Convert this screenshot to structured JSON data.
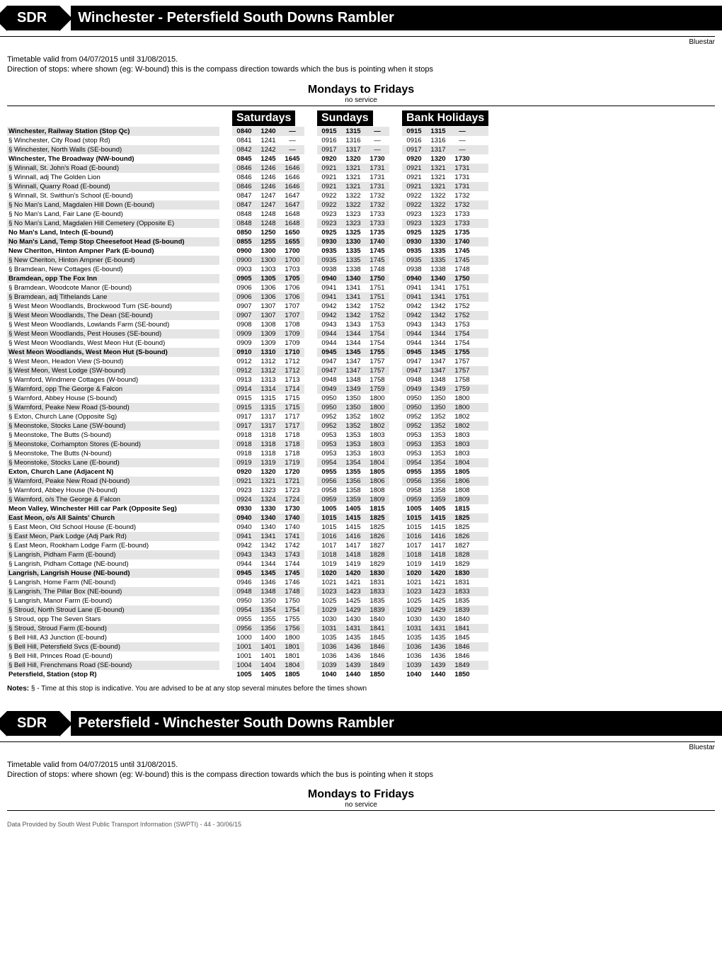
{
  "route_code": "SDR",
  "route_title": "Winchester - Petersfield South Downs Rambler",
  "route_title_reverse": "Petersfield - Winchester South Downs Rambler",
  "brand": "Bluestar",
  "validity": "Timetable valid from 04/07/2015 until 31/08/2015.",
  "direction_note": "Direction of stops: where shown (eg: W-bound) this is the compass direction towards which the bus is pointing when it stops",
  "section_title": "Mondays to Fridays",
  "no_service": "no service",
  "col_heads": [
    "Saturdays",
    "Sundays",
    "Bank Holidays"
  ],
  "notes_label": "Notes:",
  "notes_text": "§ - Time at this stop is indicative. You are advised to be at any stop several minutes before the times shown",
  "footer": "Data Provided by South West Public Transport Information (SWPTI)  -  44  -  30/06/15",
  "stops": [
    {
      "n": "Winchester, Railway Station (Stop Qc)",
      "b": true,
      "sat": [
        "0840",
        "1240",
        "—"
      ],
      "sun": [
        "0915",
        "1315",
        "—"
      ],
      "bh": [
        "0915",
        "1315",
        "—"
      ]
    },
    {
      "n": "§ Winchester, City Road (stop Rd)",
      "b": false,
      "sat": [
        "0841",
        "1241",
        "—"
      ],
      "sun": [
        "0916",
        "1316",
        "—"
      ],
      "bh": [
        "0916",
        "1316",
        "—"
      ]
    },
    {
      "n": "§ Winchester, North Walls (SE-bound)",
      "b": false,
      "sat": [
        "0842",
        "1242",
        "—"
      ],
      "sun": [
        "0917",
        "1317",
        "—"
      ],
      "bh": [
        "0917",
        "1317",
        "—"
      ]
    },
    {
      "n": "Winchester, The Broadway (NW-bound)",
      "b": true,
      "sat": [
        "0845",
        "1245",
        "1645"
      ],
      "sun": [
        "0920",
        "1320",
        "1730"
      ],
      "bh": [
        "0920",
        "1320",
        "1730"
      ]
    },
    {
      "n": "§ Winnall, St. John's Road (E-bound)",
      "b": false,
      "sat": [
        "0846",
        "1246",
        "1646"
      ],
      "sun": [
        "0921",
        "1321",
        "1731"
      ],
      "bh": [
        "0921",
        "1321",
        "1731"
      ]
    },
    {
      "n": "§ Winnall, adj The Golden Lion",
      "b": false,
      "sat": [
        "0846",
        "1246",
        "1646"
      ],
      "sun": [
        "0921",
        "1321",
        "1731"
      ],
      "bh": [
        "0921",
        "1321",
        "1731"
      ]
    },
    {
      "n": "§ Winnall, Quarry Road (E-bound)",
      "b": false,
      "sat": [
        "0846",
        "1246",
        "1646"
      ],
      "sun": [
        "0921",
        "1321",
        "1731"
      ],
      "bh": [
        "0921",
        "1321",
        "1731"
      ]
    },
    {
      "n": "§ Winnall, St. Swithun's School (E-bound)",
      "b": false,
      "sat": [
        "0847",
        "1247",
        "1647"
      ],
      "sun": [
        "0922",
        "1322",
        "1732"
      ],
      "bh": [
        "0922",
        "1322",
        "1732"
      ]
    },
    {
      "n": "§ No Man's Land, Magdalen Hill Down (E-bound)",
      "b": false,
      "sat": [
        "0847",
        "1247",
        "1647"
      ],
      "sun": [
        "0922",
        "1322",
        "1732"
      ],
      "bh": [
        "0922",
        "1322",
        "1732"
      ]
    },
    {
      "n": "§ No Man's Land, Fair Lane (E-bound)",
      "b": false,
      "sat": [
        "0848",
        "1248",
        "1648"
      ],
      "sun": [
        "0923",
        "1323",
        "1733"
      ],
      "bh": [
        "0923",
        "1323",
        "1733"
      ]
    },
    {
      "n": "§ No Man's Land, Magdalen Hill Cemetery (Opposite E)",
      "b": false,
      "sat": [
        "0848",
        "1248",
        "1648"
      ],
      "sun": [
        "0923",
        "1323",
        "1733"
      ],
      "bh": [
        "0923",
        "1323",
        "1733"
      ]
    },
    {
      "n": "No Man's Land, Intech (E-bound)",
      "b": true,
      "sat": [
        "0850",
        "1250",
        "1650"
      ],
      "sun": [
        "0925",
        "1325",
        "1735"
      ],
      "bh": [
        "0925",
        "1325",
        "1735"
      ]
    },
    {
      "n": "No Man's Land, Temp Stop Cheesefoot Head (S-bound)",
      "b": true,
      "sat": [
        "0855",
        "1255",
        "1655"
      ],
      "sun": [
        "0930",
        "1330",
        "1740"
      ],
      "bh": [
        "0930",
        "1330",
        "1740"
      ]
    },
    {
      "n": "New Cheriton, Hinton Ampner Park (E-bound)",
      "b": true,
      "sat": [
        "0900",
        "1300",
        "1700"
      ],
      "sun": [
        "0935",
        "1335",
        "1745"
      ],
      "bh": [
        "0935",
        "1335",
        "1745"
      ]
    },
    {
      "n": "§ New Cheriton, Hinton Ampner (E-bound)",
      "b": false,
      "sat": [
        "0900",
        "1300",
        "1700"
      ],
      "sun": [
        "0935",
        "1335",
        "1745"
      ],
      "bh": [
        "0935",
        "1335",
        "1745"
      ]
    },
    {
      "n": "§ Bramdean, New Cottages (E-bound)",
      "b": false,
      "sat": [
        "0903",
        "1303",
        "1703"
      ],
      "sun": [
        "0938",
        "1338",
        "1748"
      ],
      "bh": [
        "0938",
        "1338",
        "1748"
      ]
    },
    {
      "n": "Bramdean, opp The Fox Inn",
      "b": true,
      "sat": [
        "0905",
        "1305",
        "1705"
      ],
      "sun": [
        "0940",
        "1340",
        "1750"
      ],
      "bh": [
        "0940",
        "1340",
        "1750"
      ]
    },
    {
      "n": "§ Bramdean, Woodcote Manor (E-bound)",
      "b": false,
      "sat": [
        "0906",
        "1306",
        "1706"
      ],
      "sun": [
        "0941",
        "1341",
        "1751"
      ],
      "bh": [
        "0941",
        "1341",
        "1751"
      ]
    },
    {
      "n": "§ Bramdean, adj Tithelands Lane",
      "b": false,
      "sat": [
        "0906",
        "1306",
        "1706"
      ],
      "sun": [
        "0941",
        "1341",
        "1751"
      ],
      "bh": [
        "0941",
        "1341",
        "1751"
      ]
    },
    {
      "n": "§ West Meon Woodlands, Brockwood Turn (SE-bound)",
      "b": false,
      "sat": [
        "0907",
        "1307",
        "1707"
      ],
      "sun": [
        "0942",
        "1342",
        "1752"
      ],
      "bh": [
        "0942",
        "1342",
        "1752"
      ]
    },
    {
      "n": "§ West Meon Woodlands, The Dean (SE-bound)",
      "b": false,
      "sat": [
        "0907",
        "1307",
        "1707"
      ],
      "sun": [
        "0942",
        "1342",
        "1752"
      ],
      "bh": [
        "0942",
        "1342",
        "1752"
      ]
    },
    {
      "n": "§ West Meon Woodlands, Lowlands Farm (SE-bound)",
      "b": false,
      "sat": [
        "0908",
        "1308",
        "1708"
      ],
      "sun": [
        "0943",
        "1343",
        "1753"
      ],
      "bh": [
        "0943",
        "1343",
        "1753"
      ]
    },
    {
      "n": "§ West Meon Woodlands, Pest Houses (SE-bound)",
      "b": false,
      "sat": [
        "0909",
        "1309",
        "1709"
      ],
      "sun": [
        "0944",
        "1344",
        "1754"
      ],
      "bh": [
        "0944",
        "1344",
        "1754"
      ]
    },
    {
      "n": "§ West Meon Woodlands, West Meon Hut (E-bound)",
      "b": false,
      "sat": [
        "0909",
        "1309",
        "1709"
      ],
      "sun": [
        "0944",
        "1344",
        "1754"
      ],
      "bh": [
        "0944",
        "1344",
        "1754"
      ]
    },
    {
      "n": "West Meon Woodlands, West Meon Hut (S-bound)",
      "b": true,
      "sat": [
        "0910",
        "1310",
        "1710"
      ],
      "sun": [
        "0945",
        "1345",
        "1755"
      ],
      "bh": [
        "0945",
        "1345",
        "1755"
      ]
    },
    {
      "n": "§ West Meon, Headon View (S-bound)",
      "b": false,
      "sat": [
        "0912",
        "1312",
        "1712"
      ],
      "sun": [
        "0947",
        "1347",
        "1757"
      ],
      "bh": [
        "0947",
        "1347",
        "1757"
      ]
    },
    {
      "n": "§ West Meon, West Lodge (SW-bound)",
      "b": false,
      "sat": [
        "0912",
        "1312",
        "1712"
      ],
      "sun": [
        "0947",
        "1347",
        "1757"
      ],
      "bh": [
        "0947",
        "1347",
        "1757"
      ]
    },
    {
      "n": "§ Warnford, Windmere Cottages (W-bound)",
      "b": false,
      "sat": [
        "0913",
        "1313",
        "1713"
      ],
      "sun": [
        "0948",
        "1348",
        "1758"
      ],
      "bh": [
        "0948",
        "1348",
        "1758"
      ]
    },
    {
      "n": "§ Warnford, opp The George & Falcon",
      "b": false,
      "sat": [
        "0914",
        "1314",
        "1714"
      ],
      "sun": [
        "0949",
        "1349",
        "1759"
      ],
      "bh": [
        "0949",
        "1349",
        "1759"
      ]
    },
    {
      "n": "§ Warnford, Abbey House (S-bound)",
      "b": false,
      "sat": [
        "0915",
        "1315",
        "1715"
      ],
      "sun": [
        "0950",
        "1350",
        "1800"
      ],
      "bh": [
        "0950",
        "1350",
        "1800"
      ]
    },
    {
      "n": "§ Warnford, Peake New Road (S-bound)",
      "b": false,
      "sat": [
        "0915",
        "1315",
        "1715"
      ],
      "sun": [
        "0950",
        "1350",
        "1800"
      ],
      "bh": [
        "0950",
        "1350",
        "1800"
      ]
    },
    {
      "n": "§ Exton, Church Lane (Opposite Sg)",
      "b": false,
      "sat": [
        "0917",
        "1317",
        "1717"
      ],
      "sun": [
        "0952",
        "1352",
        "1802"
      ],
      "bh": [
        "0952",
        "1352",
        "1802"
      ]
    },
    {
      "n": "§ Meonstoke, Stocks Lane (SW-bound)",
      "b": false,
      "sat": [
        "0917",
        "1317",
        "1717"
      ],
      "sun": [
        "0952",
        "1352",
        "1802"
      ],
      "bh": [
        "0952",
        "1352",
        "1802"
      ]
    },
    {
      "n": "§ Meonstoke, The Butts (S-bound)",
      "b": false,
      "sat": [
        "0918",
        "1318",
        "1718"
      ],
      "sun": [
        "0953",
        "1353",
        "1803"
      ],
      "bh": [
        "0953",
        "1353",
        "1803"
      ]
    },
    {
      "n": "§ Meonstoke, Corhampton Stores (E-bound)",
      "b": false,
      "sat": [
        "0918",
        "1318",
        "1718"
      ],
      "sun": [
        "0953",
        "1353",
        "1803"
      ],
      "bh": [
        "0953",
        "1353",
        "1803"
      ]
    },
    {
      "n": "§ Meonstoke, The Butts (N-bound)",
      "b": false,
      "sat": [
        "0918",
        "1318",
        "1718"
      ],
      "sun": [
        "0953",
        "1353",
        "1803"
      ],
      "bh": [
        "0953",
        "1353",
        "1803"
      ]
    },
    {
      "n": "§ Meonstoke, Stocks Lane (E-bound)",
      "b": false,
      "sat": [
        "0919",
        "1319",
        "1719"
      ],
      "sun": [
        "0954",
        "1354",
        "1804"
      ],
      "bh": [
        "0954",
        "1354",
        "1804"
      ]
    },
    {
      "n": "Exton, Church Lane (Adjacent N)",
      "b": true,
      "sat": [
        "0920",
        "1320",
        "1720"
      ],
      "sun": [
        "0955",
        "1355",
        "1805"
      ],
      "bh": [
        "0955",
        "1355",
        "1805"
      ]
    },
    {
      "n": "§ Warnford, Peake New Road (N-bound)",
      "b": false,
      "sat": [
        "0921",
        "1321",
        "1721"
      ],
      "sun": [
        "0956",
        "1356",
        "1806"
      ],
      "bh": [
        "0956",
        "1356",
        "1806"
      ]
    },
    {
      "n": "§ Warnford, Abbey House (N-bound)",
      "b": false,
      "sat": [
        "0923",
        "1323",
        "1723"
      ],
      "sun": [
        "0958",
        "1358",
        "1808"
      ],
      "bh": [
        "0958",
        "1358",
        "1808"
      ]
    },
    {
      "n": "§ Warnford, o/s The George & Falcon",
      "b": false,
      "sat": [
        "0924",
        "1324",
        "1724"
      ],
      "sun": [
        "0959",
        "1359",
        "1809"
      ],
      "bh": [
        "0959",
        "1359",
        "1809"
      ]
    },
    {
      "n": "Meon Valley, Winchester Hill car Park (Opposite Seg)",
      "b": true,
      "sat": [
        "0930",
        "1330",
        "1730"
      ],
      "sun": [
        "1005",
        "1405",
        "1815"
      ],
      "bh": [
        "1005",
        "1405",
        "1815"
      ]
    },
    {
      "n": "East Meon, o/s All Saints' Church",
      "b": true,
      "sat": [
        "0940",
        "1340",
        "1740"
      ],
      "sun": [
        "1015",
        "1415",
        "1825"
      ],
      "bh": [
        "1015",
        "1415",
        "1825"
      ]
    },
    {
      "n": "§ East Meon, Old School House (E-bound)",
      "b": false,
      "sat": [
        "0940",
        "1340",
        "1740"
      ],
      "sun": [
        "1015",
        "1415",
        "1825"
      ],
      "bh": [
        "1015",
        "1415",
        "1825"
      ]
    },
    {
      "n": "§ East Meon, Park Lodge (Adj Park Rd)",
      "b": false,
      "sat": [
        "0941",
        "1341",
        "1741"
      ],
      "sun": [
        "1016",
        "1416",
        "1826"
      ],
      "bh": [
        "1016",
        "1416",
        "1826"
      ]
    },
    {
      "n": "§ East Meon, Rookham Lodge Farm (E-bound)",
      "b": false,
      "sat": [
        "0942",
        "1342",
        "1742"
      ],
      "sun": [
        "1017",
        "1417",
        "1827"
      ],
      "bh": [
        "1017",
        "1417",
        "1827"
      ]
    },
    {
      "n": "§ Langrish, Pidham Farm (E-bound)",
      "b": false,
      "sat": [
        "0943",
        "1343",
        "1743"
      ],
      "sun": [
        "1018",
        "1418",
        "1828"
      ],
      "bh": [
        "1018",
        "1418",
        "1828"
      ]
    },
    {
      "n": "§ Langrish, Pidham Cottage (NE-bound)",
      "b": false,
      "sat": [
        "0944",
        "1344",
        "1744"
      ],
      "sun": [
        "1019",
        "1419",
        "1829"
      ],
      "bh": [
        "1019",
        "1419",
        "1829"
      ]
    },
    {
      "n": "Langrish, Langrish House (NE-bound)",
      "b": true,
      "sat": [
        "0945",
        "1345",
        "1745"
      ],
      "sun": [
        "1020",
        "1420",
        "1830"
      ],
      "bh": [
        "1020",
        "1420",
        "1830"
      ]
    },
    {
      "n": "§ Langrish, Home Farm (NE-bound)",
      "b": false,
      "sat": [
        "0946",
        "1346",
        "1746"
      ],
      "sun": [
        "1021",
        "1421",
        "1831"
      ],
      "bh": [
        "1021",
        "1421",
        "1831"
      ]
    },
    {
      "n": "§ Langrish, The Pillar Box (NE-bound)",
      "b": false,
      "sat": [
        "0948",
        "1348",
        "1748"
      ],
      "sun": [
        "1023",
        "1423",
        "1833"
      ],
      "bh": [
        "1023",
        "1423",
        "1833"
      ]
    },
    {
      "n": "§ Langrish, Manor Farm (E-bound)",
      "b": false,
      "sat": [
        "0950",
        "1350",
        "1750"
      ],
      "sun": [
        "1025",
        "1425",
        "1835"
      ],
      "bh": [
        "1025",
        "1425",
        "1835"
      ]
    },
    {
      "n": "§ Stroud, North Stroud Lane (E-bound)",
      "b": false,
      "sat": [
        "0954",
        "1354",
        "1754"
      ],
      "sun": [
        "1029",
        "1429",
        "1839"
      ],
      "bh": [
        "1029",
        "1429",
        "1839"
      ]
    },
    {
      "n": "§ Stroud, opp The Seven Stars",
      "b": false,
      "sat": [
        "0955",
        "1355",
        "1755"
      ],
      "sun": [
        "1030",
        "1430",
        "1840"
      ],
      "bh": [
        "1030",
        "1430",
        "1840"
      ]
    },
    {
      "n": "§ Stroud, Stroud Farm (E-bound)",
      "b": false,
      "sat": [
        "0956",
        "1356",
        "1756"
      ],
      "sun": [
        "1031",
        "1431",
        "1841"
      ],
      "bh": [
        "1031",
        "1431",
        "1841"
      ]
    },
    {
      "n": "§ Bell Hill, A3 Junction (E-bound)",
      "b": false,
      "sat": [
        "1000",
        "1400",
        "1800"
      ],
      "sun": [
        "1035",
        "1435",
        "1845"
      ],
      "bh": [
        "1035",
        "1435",
        "1845"
      ]
    },
    {
      "n": "§ Bell Hill, Petersfield Svcs (E-bound)",
      "b": false,
      "sat": [
        "1001",
        "1401",
        "1801"
      ],
      "sun": [
        "1036",
        "1436",
        "1846"
      ],
      "bh": [
        "1036",
        "1436",
        "1846"
      ]
    },
    {
      "n": "§ Bell Hill, Princes Road (E-bound)",
      "b": false,
      "sat": [
        "1001",
        "1401",
        "1801"
      ],
      "sun": [
        "1036",
        "1436",
        "1846"
      ],
      "bh": [
        "1036",
        "1436",
        "1846"
      ]
    },
    {
      "n": "§ Bell Hill, Frenchmans Road (SE-bound)",
      "b": false,
      "sat": [
        "1004",
        "1404",
        "1804"
      ],
      "sun": [
        "1039",
        "1439",
        "1849"
      ],
      "bh": [
        "1039",
        "1439",
        "1849"
      ]
    },
    {
      "n": "Petersfield, Station (stop R)",
      "b": true,
      "sat": [
        "1005",
        "1405",
        "1805"
      ],
      "sun": [
        "1040",
        "1440",
        "1850"
      ],
      "bh": [
        "1040",
        "1440",
        "1850"
      ]
    }
  ],
  "shade_color": "#e5e5e5",
  "bg_color": "#ffffff",
  "text_color": "#000000",
  "header_bg": "#000000",
  "header_fg": "#ffffff"
}
